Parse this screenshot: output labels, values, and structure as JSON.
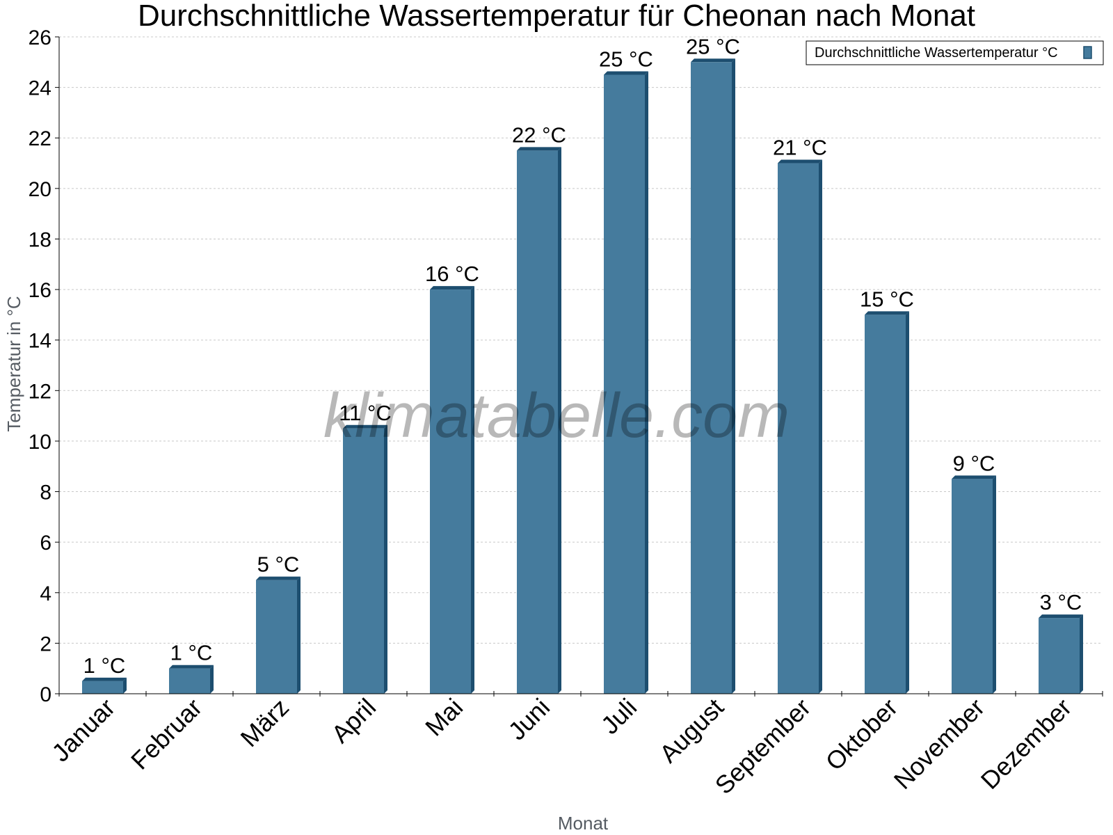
{
  "chart_data": {
    "type": "bar",
    "title": "Durchschnittliche Wassertemperatur für Cheonan nach Monat",
    "xlabel": "Monat",
    "ylabel": "Temperatur in °C",
    "categories": [
      "Januar",
      "Februar",
      "März",
      "April",
      "Mai",
      "Juni",
      "Juli",
      "August",
      "September",
      "Oktober",
      "November",
      "Dezember"
    ],
    "series": [
      {
        "name": "Durchschnittliche Wassertemperatur °C",
        "values": [
          0.5,
          1.0,
          4.5,
          10.5,
          16.0,
          21.5,
          24.5,
          25.0,
          21.0,
          15.0,
          8.5,
          3.0
        ],
        "labels": [
          "1 °C",
          "1 °C",
          "5 °C",
          "11 °C",
          "16 °C",
          "22 °C",
          "25 °C",
          "25 °C",
          "21 °C",
          "15 °C",
          "9 °C",
          "3 °C"
        ]
      }
    ],
    "ylim": [
      0,
      26
    ],
    "yticks": [
      0,
      2,
      4,
      6,
      8,
      10,
      12,
      14,
      16,
      18,
      20,
      22,
      24,
      26
    ],
    "grid": true,
    "legend_position": "top-right",
    "colors": {
      "bar": "#457b9d",
      "bar_side": "#1d4e6f",
      "grid": "#c8c8c8"
    },
    "watermark": "klimatabelle.com"
  }
}
